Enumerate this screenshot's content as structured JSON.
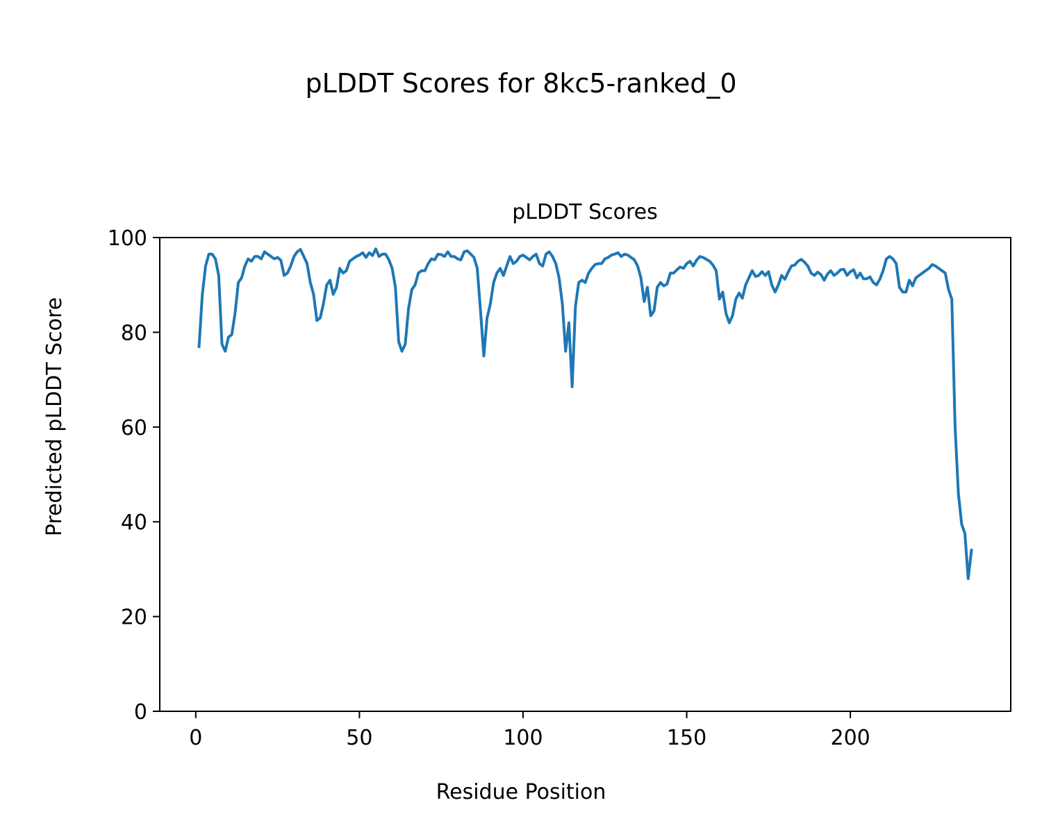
{
  "figure": {
    "suptitle": "pLDDT Scores for 8kc5-ranked_0"
  },
  "chart_data": {
    "type": "line",
    "title": "pLDDT Scores",
    "xlabel": "Residue Position",
    "ylabel": "Predicted pLDDT Score",
    "xlim": [
      -11,
      249
    ],
    "ylim": [
      0,
      100
    ],
    "xticks": [
      0,
      50,
      100,
      150,
      200
    ],
    "yticks": [
      0,
      20,
      40,
      60,
      80,
      100
    ],
    "grid": false,
    "legend": "none",
    "series": [
      {
        "color": "#1f77b4",
        "x": [
          1,
          2,
          3,
          4,
          5,
          6,
          7,
          8,
          9,
          10,
          11,
          12,
          13,
          14,
          15,
          16,
          17,
          18,
          19,
          20,
          21,
          22,
          23,
          24,
          25,
          26,
          27,
          28,
          29,
          30,
          31,
          32,
          33,
          34,
          35,
          36,
          37,
          38,
          39,
          40,
          41,
          42,
          43,
          44,
          45,
          46,
          47,
          48,
          49,
          50,
          51,
          52,
          53,
          54,
          55,
          56,
          57,
          58,
          59,
          60,
          61,
          62,
          63,
          64,
          65,
          66,
          67,
          68,
          69,
          70,
          71,
          72,
          73,
          74,
          75,
          76,
          77,
          78,
          79,
          80,
          81,
          82,
          83,
          84,
          85,
          86,
          87,
          88,
          89,
          90,
          91,
          92,
          93,
          94,
          95,
          96,
          97,
          98,
          99,
          100,
          101,
          102,
          103,
          104,
          105,
          106,
          107,
          108,
          109,
          110,
          111,
          112,
          113,
          114,
          115,
          116,
          117,
          118,
          119,
          120,
          121,
          122,
          123,
          124,
          125,
          126,
          127,
          128,
          129,
          130,
          131,
          132,
          133,
          134,
          135,
          136,
          137,
          138,
          139,
          140,
          141,
          142,
          143,
          144,
          145,
          146,
          147,
          148,
          149,
          150,
          151,
          152,
          153,
          154,
          155,
          156,
          157,
          158,
          159,
          160,
          161,
          162,
          163,
          164,
          165,
          166,
          167,
          168,
          169,
          170,
          171,
          172,
          173,
          174,
          175,
          176,
          177,
          178,
          179,
          180,
          181,
          182,
          183,
          184,
          185,
          186,
          187,
          188,
          189,
          190,
          191,
          192,
          193,
          194,
          195,
          196,
          197,
          198,
          199,
          200,
          201,
          202,
          203,
          204,
          205,
          206,
          207,
          208,
          209,
          210,
          211,
          212,
          213,
          214,
          215,
          216,
          217,
          218,
          219,
          220,
          221,
          222,
          223,
          224,
          225,
          226,
          227,
          228,
          229,
          230,
          231,
          232,
          233,
          234,
          235,
          236,
          237
        ],
        "y": [
          77,
          88,
          94,
          96.5,
          96.5,
          95.5,
          92,
          77.5,
          76,
          79,
          79.5,
          84,
          90.5,
          91.5,
          94,
          95.5,
          95,
          96,
          96,
          95.5,
          97,
          96.5,
          96,
          95.5,
          95.8,
          95.2,
          92,
          92.5,
          94,
          96,
          97,
          97.5,
          96,
          94.5,
          90.5,
          88,
          82.5,
          83,
          86,
          90,
          91,
          88,
          89.5,
          93.5,
          92.5,
          93,
          95,
          95.5,
          96,
          96.3,
          96.8,
          95.8,
          96.8,
          96.2,
          97.6,
          96,
          96.5,
          96.5,
          95.3,
          93.5,
          89.5,
          78,
          76,
          77.5,
          85,
          89,
          90,
          92.5,
          93,
          93,
          94.5,
          95.5,
          95.3,
          96.5,
          96.4,
          96,
          97,
          96,
          96,
          95.5,
          95.3,
          97,
          97.2,
          96.5,
          95.8,
          93.5,
          84.5,
          75,
          83,
          86,
          90.5,
          92.5,
          93.5,
          92,
          94,
          96,
          94.5,
          95,
          96,
          96.3,
          95.8,
          95.3,
          96,
          96.5,
          94.5,
          94,
          96.5,
          97,
          96,
          94.5,
          91.5,
          86,
          76,
          82,
          68.5,
          85.5,
          90.5,
          91,
          90.5,
          92.5,
          93.5,
          94.3,
          94.5,
          94.5,
          95.5,
          95.8,
          96.3,
          96.5,
          96.8,
          96,
          96.5,
          96.3,
          95.8,
          95.3,
          94,
          91.5,
          86.5,
          89.5,
          83.5,
          84.5,
          89.5,
          90.5,
          89.8,
          90.2,
          92.5,
          92.5,
          93.2,
          93.8,
          93.5,
          94.5,
          95,
          94,
          95.2,
          96,
          95.8,
          95.4,
          95,
          94.2,
          93,
          87,
          88.5,
          84,
          82,
          83.5,
          87,
          88.3,
          87.2,
          90,
          91.5,
          93,
          91.8,
          92,
          92.8,
          92,
          92.8,
          90,
          88.5,
          90,
          92,
          91.2,
          92.7,
          94,
          94.2,
          95,
          95.4,
          94.8,
          94,
          92.5,
          92,
          92.7,
          92.2,
          91,
          92.3,
          93,
          92,
          92.5,
          93.2,
          93.3,
          92,
          92.8,
          93.2,
          91.5,
          92.5,
          91.3,
          91.3,
          91.7,
          90.5,
          90,
          91.2,
          93,
          95.5,
          96,
          95.5,
          94.5,
          89.5,
          88.5,
          88.5,
          91,
          89.8,
          91.5,
          92,
          92.5,
          93,
          93.5,
          94.3,
          94,
          93.5,
          93,
          92.5,
          89,
          87,
          60,
          46,
          39.5,
          37.5,
          28,
          34
        ]
      }
    ]
  }
}
